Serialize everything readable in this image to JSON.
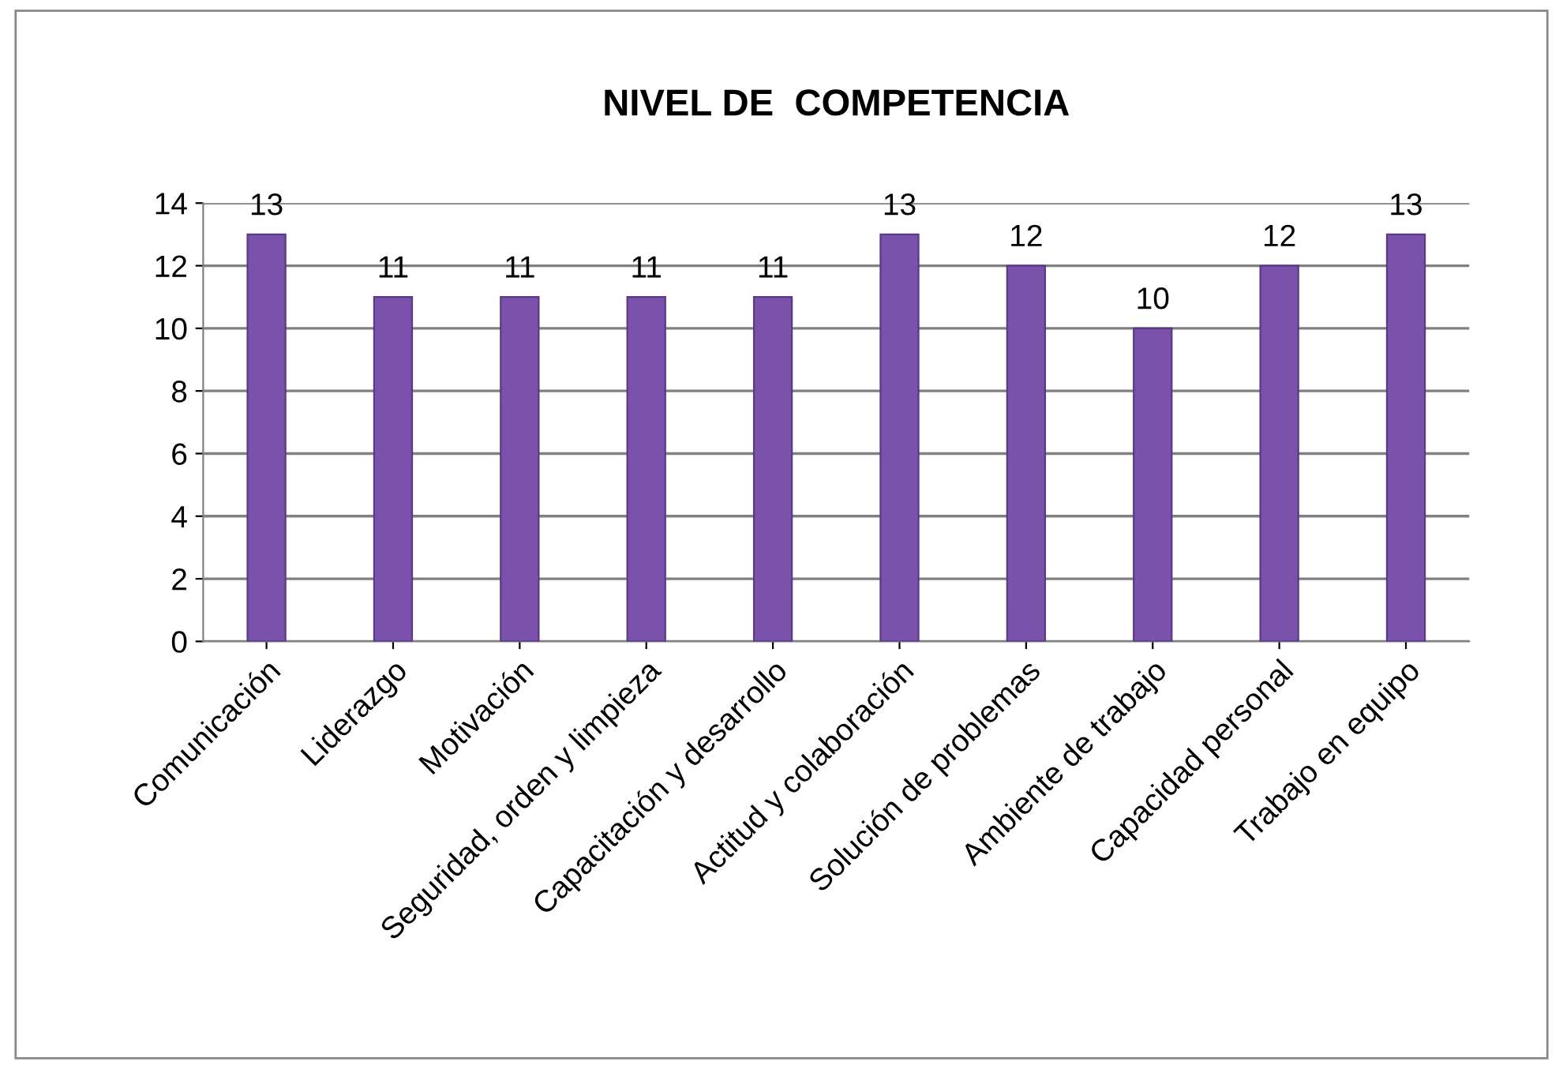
{
  "chart_data": {
    "type": "bar",
    "title": "NIVEL DE  COMPETENCIA",
    "categories": [
      "Comunicación",
      "Liderazgo",
      "Motivación",
      "Seguridad, orden y limpieza",
      "Capacitación y desarrollo",
      "Actitud y colaboración",
      "Solución de problemas",
      "Ambiente de trabajo",
      "Capacidad personal",
      "Trabajo en equipo"
    ],
    "values": [
      13,
      11,
      11,
      11,
      11,
      13,
      12,
      10,
      12,
      13
    ],
    "color": "#7b52ab",
    "ylim": [
      0,
      14
    ],
    "yticks": [
      0,
      2,
      4,
      6,
      8,
      10,
      12,
      14
    ],
    "grid": "y",
    "data_labels": true,
    "legend": false
  }
}
